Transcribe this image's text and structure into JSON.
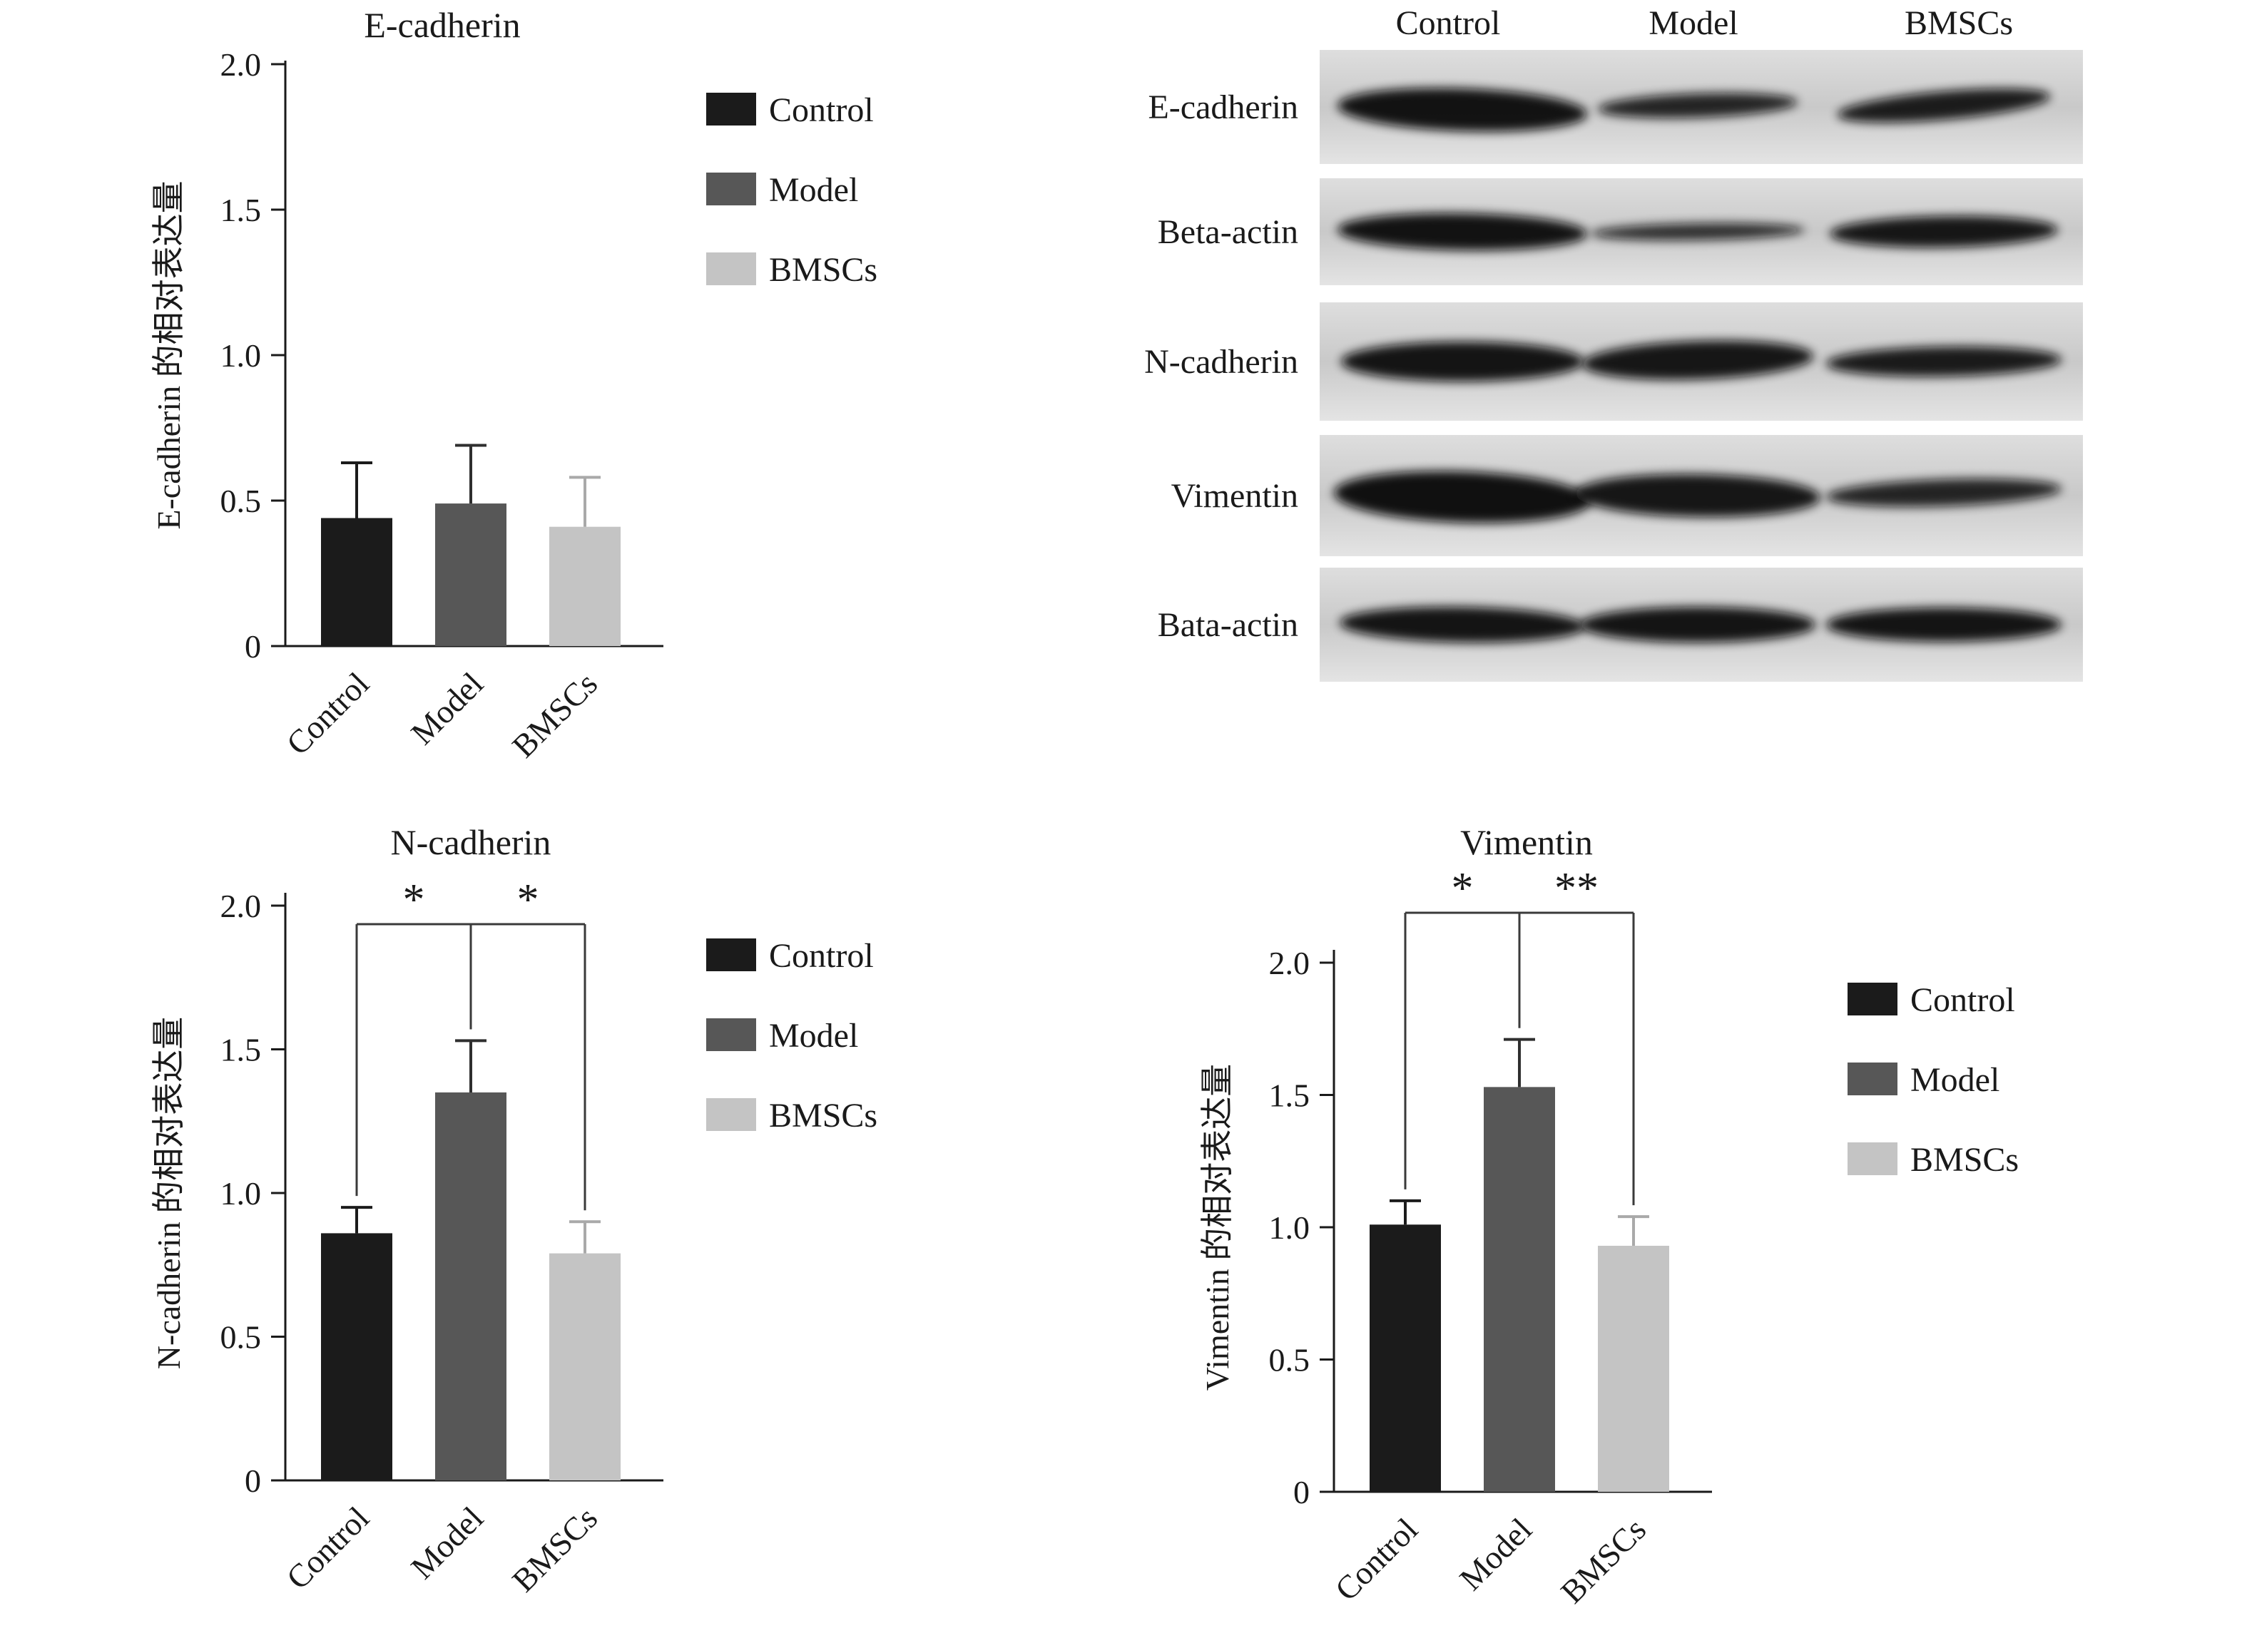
{
  "figure": {
    "background": "#ffffff"
  },
  "colors": {
    "series": [
      "#1b1b1b",
      "#575757",
      "#c4c4c4"
    ],
    "error_bars": [
      "#1b1b1b",
      "#2f2f2f",
      "#a9a9a9"
    ],
    "axis": "#1a1a1a",
    "bracket": "#3a3a3a"
  },
  "legend_items": [
    {
      "label": "Control",
      "color": "#1b1b1b"
    },
    {
      "label": "Model",
      "color": "#575757"
    },
    {
      "label": "BMSCs",
      "color": "#c4c4c4"
    }
  ],
  "blot": {
    "col_headers": [
      "Control",
      "Model",
      "BMSCs"
    ],
    "rows": [
      {
        "label": "E-cadherin",
        "band_intensities": [
          0.97,
          0.88,
          0.92
        ]
      },
      {
        "label": "Beta-actin",
        "band_intensities": [
          0.97,
          0.82,
          0.95
        ]
      },
      {
        "label": "N-cadherin",
        "band_intensities": [
          0.96,
          0.95,
          0.93
        ]
      },
      {
        "label": "Vimentin",
        "band_intensities": [
          0.98,
          0.95,
          0.88
        ]
      },
      {
        "label": "Bata-actin",
        "band_intensities": [
          0.96,
          0.96,
          0.96
        ]
      }
    ]
  },
  "chart_data": [
    {
      "type": "bar",
      "title": "E-cadherin",
      "ylabel": "E-cadherin 的相对表达量",
      "xlabel": "",
      "categories": [
        "Control",
        "Model",
        "BMSCs"
      ],
      "values": [
        0.44,
        0.49,
        0.41
      ],
      "errors": [
        0.19,
        0.2,
        0.17
      ],
      "ylim": [
        0,
        2.0
      ],
      "yticks": [
        0,
        0.5,
        1.0,
        1.5,
        2.0
      ],
      "ytick_labels": [
        "0",
        "0.5",
        "1.0",
        "1.5",
        "2.0"
      ],
      "grid": false,
      "legend_position": "right",
      "significance": []
    },
    {
      "type": "bar",
      "title": "N-cadherin",
      "ylabel": "N-cadherin 的相对表达量",
      "xlabel": "",
      "categories": [
        "Control",
        "Model",
        "BMSCs"
      ],
      "values": [
        0.86,
        1.35,
        0.79
      ],
      "errors": [
        0.09,
        0.18,
        0.11
      ],
      "ylim": [
        0,
        2.0
      ],
      "yticks": [
        0,
        0.5,
        1.0,
        1.5,
        2.0
      ],
      "ytick_labels": [
        "0",
        "0.5",
        "1.0",
        "1.5",
        "2.0"
      ],
      "grid": false,
      "legend_position": "right",
      "significance": [
        {
          "from": 0,
          "to": 1,
          "label": "*"
        },
        {
          "from": 1,
          "to": 2,
          "label": "*"
        }
      ]
    },
    {
      "type": "bar",
      "title": "Vimentin",
      "ylabel": "Vimentin 的相对表达量",
      "xlabel": "",
      "categories": [
        "Control",
        "Model",
        "BMSCs"
      ],
      "values": [
        1.01,
        1.53,
        0.93
      ],
      "errors": [
        0.09,
        0.18,
        0.11
      ],
      "ylim": [
        0,
        2.0
      ],
      "yticks": [
        0,
        0.5,
        1.0,
        1.5,
        2.0
      ],
      "ytick_labels": [
        "0",
        "0.5",
        "1.0",
        "1.5",
        "2.0"
      ],
      "grid": false,
      "legend_position": "right",
      "significance": [
        {
          "from": 0,
          "to": 1,
          "label": "*"
        },
        {
          "from": 1,
          "to": 2,
          "label": "**"
        }
      ]
    }
  ]
}
